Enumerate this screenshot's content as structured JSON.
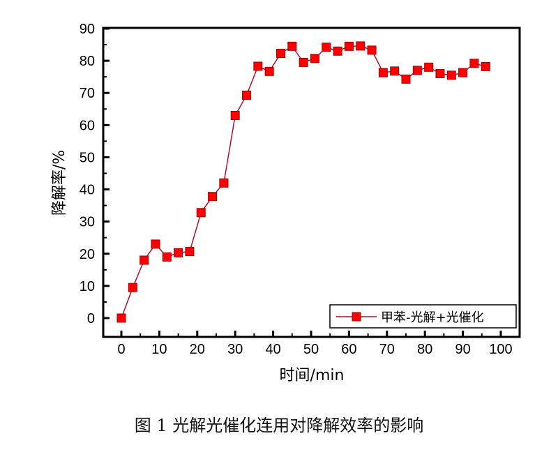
{
  "chart_data": {
    "type": "line",
    "xlabel": "时间/min",
    "ylabel": "降解率/%",
    "xlim": [
      -10,
      105
    ],
    "ylim": [
      -6,
      90
    ],
    "xticks": [
      0,
      10,
      20,
      30,
      40,
      50,
      60,
      70,
      80,
      90,
      100
    ],
    "yticks": [
      0,
      10,
      20,
      30,
      40,
      50,
      60,
      70,
      80,
      90
    ],
    "grid": false,
    "legend_position": "bottom-right",
    "series": [
      {
        "name": "甲苯-光解+光催化",
        "color": "#ff0000",
        "line_color": "#b0102a",
        "marker": "square",
        "x": [
          0,
          3,
          6,
          9,
          12,
          15,
          18,
          21,
          24,
          27,
          30,
          33,
          36,
          39,
          42,
          45,
          48,
          51,
          54,
          57,
          60,
          63,
          66,
          69,
          72,
          75,
          78,
          81,
          84,
          87,
          90,
          93,
          96
        ],
        "y": [
          0,
          9.5,
          18,
          23,
          19,
          20.3,
          20.7,
          32.8,
          37.8,
          42,
          63,
          69.3,
          78.3,
          76.7,
          82.3,
          84.5,
          79.5,
          80.7,
          84.2,
          83,
          84.5,
          84.6,
          83.3,
          76.3,
          76.8,
          74.3,
          77,
          78,
          76,
          75.5,
          76.3,
          79.2,
          78.2
        ]
      }
    ]
  },
  "caption": "图 1  光解光催化连用对降解效率的影响"
}
